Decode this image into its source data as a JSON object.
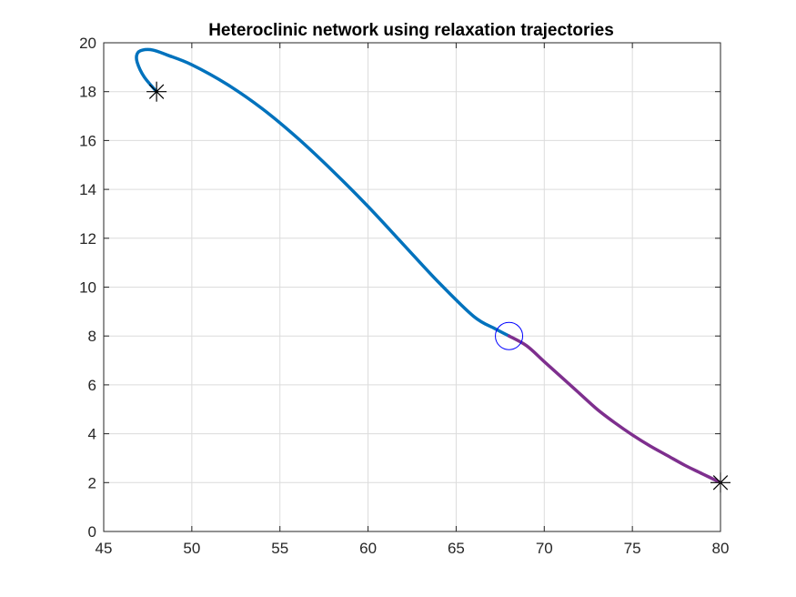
{
  "chart_data": {
    "type": "line",
    "title": "Heteroclinic network using relaxation trajectories",
    "xlabel": "",
    "ylabel": "",
    "xlim": [
      45,
      80
    ],
    "ylim": [
      0,
      20
    ],
    "xticks": [
      45,
      50,
      55,
      60,
      65,
      70,
      75,
      80
    ],
    "yticks": [
      0,
      2,
      4,
      6,
      8,
      10,
      12,
      14,
      16,
      18,
      20
    ],
    "grid": true,
    "box": true,
    "series": [
      {
        "color": "#0072BD",
        "x": [
          48,
          47.3,
          46.9,
          46.9,
          47.2,
          47.8,
          48.6,
          50,
          52,
          54,
          56,
          58,
          60,
          62,
          64,
          66,
          67.2,
          68
        ],
        "y": [
          18,
          18.6,
          19.2,
          19.55,
          19.7,
          19.7,
          19.5,
          19.1,
          18.3,
          17.3,
          16.1,
          14.75,
          13.3,
          11.75,
          10.2,
          8.8,
          8.3,
          8
        ]
      },
      {
        "color": "#7E2F8E",
        "x": [
          68,
          69,
          70,
          71,
          72,
          73,
          74,
          75,
          76,
          77,
          78,
          79,
          80
        ],
        "y": [
          8,
          7.6,
          6.95,
          6.3,
          5.65,
          5.0,
          4.45,
          3.95,
          3.5,
          3.1,
          2.7,
          2.35,
          2
        ]
      }
    ],
    "markers": [
      {
        "kind": "asterisk",
        "x": 48,
        "y": 18,
        "color": "#000000"
      },
      {
        "kind": "asterisk",
        "x": 80,
        "y": 2,
        "color": "#000000"
      },
      {
        "kind": "circle",
        "x": 68,
        "y": 8,
        "color": "#0000FF"
      }
    ]
  }
}
